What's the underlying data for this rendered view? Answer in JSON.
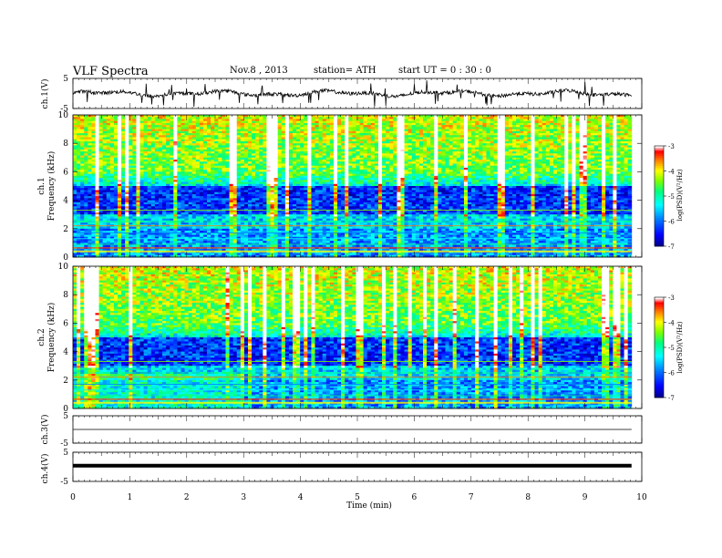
{
  "header": {
    "title": "VLF Spectra",
    "date": "Nov.8 , 2013",
    "station": "station= ATH",
    "start": "start UT = 0 : 30 : 0"
  },
  "chart_data": [
    {
      "type": "line",
      "ylabel": "ch.1(V)",
      "ylim": [
        -5,
        5
      ],
      "yticks": [
        "5",
        "-5"
      ],
      "xlim": [
        0,
        10
      ],
      "trace": "noisy waveform, roughly -2 to 2 V with spikes to about ±4 V"
    },
    {
      "type": "heatmap",
      "ylabel": "ch.1",
      "ylabel2": "Frequency (kHz)",
      "ylim": [
        0,
        10
      ],
      "yticks": [
        "0",
        "2",
        "4",
        "6",
        "8",
        "10"
      ],
      "xlim": [
        0,
        10
      ],
      "colorbar": {
        "label": "log(PSD)(V²/Hz)",
        "range": [
          -7,
          -3
        ],
        "ticks": [
          "-3",
          "-4",
          "-5",
          "-6",
          "-7"
        ]
      }
    },
    {
      "type": "heatmap",
      "ylabel": "ch.2",
      "ylabel2": "Frequency (kHz)",
      "ylim": [
        0,
        10
      ],
      "yticks": [
        "0",
        "2",
        "4",
        "6",
        "8",
        "10"
      ],
      "xlim": [
        0,
        10
      ],
      "colorbar": {
        "label": "log(PSD)(V²/Hz)",
        "range": [
          -7,
          -3
        ],
        "ticks": [
          "-3",
          "-4",
          "-5",
          "-6",
          "-7"
        ]
      }
    },
    {
      "type": "line",
      "ylabel": "ch.3(V)",
      "ylim": [
        -5,
        5
      ],
      "yticks": [
        "5",
        "-5"
      ],
      "xlim": [
        0,
        10
      ],
      "trace": "flat line near 0 V"
    },
    {
      "type": "line",
      "ylabel": "ch.4(V)",
      "ylim": [
        -5,
        5
      ],
      "yticks": [
        "5",
        "-5"
      ],
      "xlim": [
        0,
        10
      ],
      "trace": "thick flat line near 0 V"
    }
  ],
  "xaxis": {
    "label": "Time (min)",
    "ticks": [
      "0",
      "1",
      "2",
      "3",
      "4",
      "5",
      "6",
      "7",
      "8",
      "9",
      "10"
    ],
    "data_end": 9.82
  },
  "colors": {
    "scale": [
      "#000080",
      "#0000ff",
      "#0080ff",
      "#00ffff",
      "#00ff80",
      "#80ff00",
      "#ffff00",
      "#ff8000",
      "#ff0000",
      "#ffffff"
    ]
  }
}
